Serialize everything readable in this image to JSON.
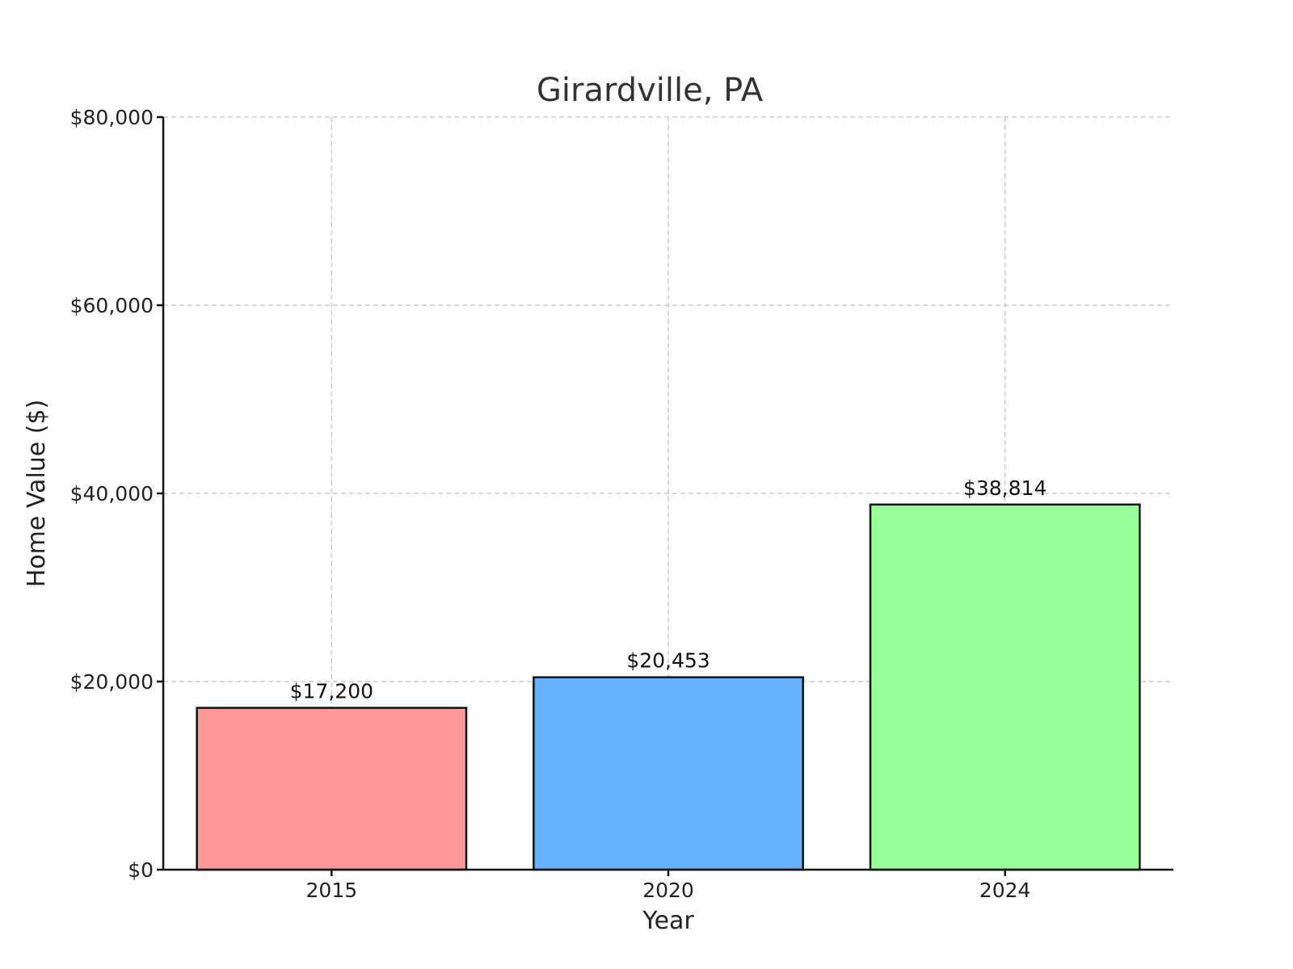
{
  "chart_data": {
    "type": "bar",
    "title": "Girardville, PA",
    "xlabel": "Year",
    "ylabel": "Home Value ($)",
    "categories": [
      "2015",
      "2020",
      "2024"
    ],
    "values": [
      17200,
      20453,
      38814
    ],
    "value_labels": [
      "$17,200",
      "$20,453",
      "$38,814"
    ],
    "colors": [
      "#ff9999",
      "#66b2ff",
      "#99ff99"
    ],
    "ylim": [
      0,
      80000
    ],
    "yticks": [
      0,
      20000,
      40000,
      60000,
      80000
    ],
    "ytick_labels": [
      "$0",
      "$20,000",
      "$40,000",
      "$60,000",
      "$80,000"
    ],
    "grid": true,
    "legend": "none"
  }
}
